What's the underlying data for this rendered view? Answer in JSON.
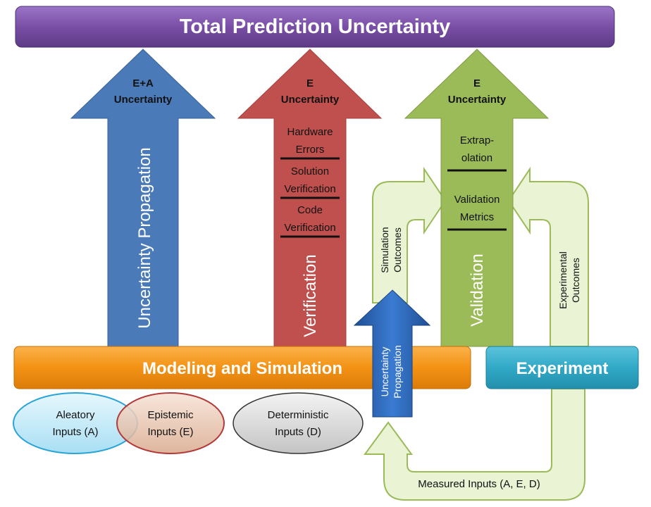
{
  "title": "Total Prediction Uncertainty",
  "columns": {
    "propagation": {
      "header_line1": "E+A",
      "header_line2": "Uncertainty",
      "label": "Uncertainty Propagation"
    },
    "verification": {
      "header_line1": "E",
      "header_line2": "Uncertainty",
      "items": [
        {
          "line1": "Hardware",
          "line2": "Errors"
        },
        {
          "line1": "Solution",
          "line2": "Verification"
        },
        {
          "line1": "Code",
          "line2": "Verification"
        }
      ],
      "label": "Verification"
    },
    "validation": {
      "header_line1": "E",
      "header_line2": "Uncertainty",
      "items": [
        {
          "line1": "Extrap-",
          "line2": "olation"
        },
        {
          "line1": "Validation",
          "line2": "Metrics"
        }
      ],
      "label": "Validation"
    }
  },
  "modeling_bar": "Modeling and Simulation",
  "experiment_box": "Experiment",
  "small_arrow": {
    "line1": "Uncertainty",
    "line2": "Propagation"
  },
  "loops": {
    "simulation": {
      "line1": "Simulation",
      "line2": "Outcomes"
    },
    "experimental": {
      "line1": "Experimental",
      "line2": "Outcomes"
    },
    "measured": "Measured Inputs (A, E, D)"
  },
  "inputs": {
    "aleatory": {
      "line1": "Aleatory",
      "line2": "Inputs (A)"
    },
    "epistemic": {
      "line1": "Epistemic",
      "line2": "Inputs (E)"
    },
    "deterministic": {
      "line1": "Deterministic",
      "line2": "Inputs (D)"
    }
  },
  "colors": {
    "title_bar": "#7a4fa6",
    "blue_arrow": "#4a7ab8",
    "red_arrow": "#c0504d",
    "green_arrow": "#9bbb59",
    "loop_fill": "#eaf3d4",
    "loop_stroke": "#9bbb59",
    "orange_bar": "#f39214",
    "experiment": "#31a9c7",
    "small_arrow": "#2f68b8"
  },
  "icons": [
    "arrow-up-icon",
    "loop-arrow-icon"
  ]
}
